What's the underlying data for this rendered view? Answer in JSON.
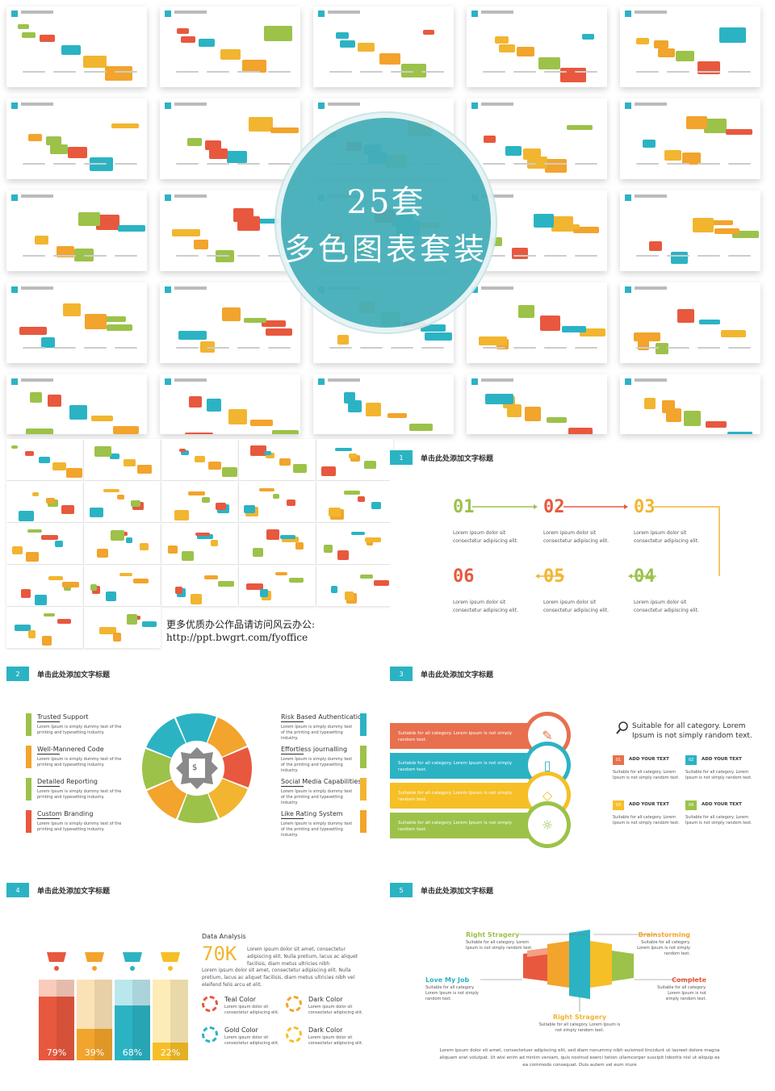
{
  "overlay": {
    "line1": "25套",
    "line2": "多色图表套装"
  },
  "collage_caption": {
    "line1": "更多优质办公作品请访问风云办公:",
    "line2": "http://ppt.bwgrt.com/fyoffice"
  },
  "slide1": {
    "num": "1",
    "title": "单击此处添加文字标题",
    "steps": [
      {
        "n": "01",
        "color": "#9cc24a",
        "text1": "Lorem ipsum dolor sit",
        "text2": "consectetur adipiscing elit."
      },
      {
        "n": "02",
        "color": "#e8583e",
        "text1": "Lorem ipsum dolor sit",
        "text2": "consectetur adipiscing elit."
      },
      {
        "n": "03",
        "color": "#f2b530",
        "text1": "Lorem ipsum dolor sit",
        "text2": "consectetur adipiscing elit."
      },
      {
        "n": "06",
        "color": "#e8583e",
        "text1": "Lorem ipsum dolor sit",
        "text2": "consectetur adipiscing elit."
      },
      {
        "n": "05",
        "color": "#f2b530",
        "text1": "Lorem ipsum dolor sit",
        "text2": "consectetur adipiscing elit."
      },
      {
        "n": "04",
        "color": "#9cc24a",
        "text1": "Lorem ipsum dolor sit",
        "text2": "consectetur adipiscing elit."
      }
    ]
  },
  "slide2": {
    "num": "2",
    "title": "单击此处添加文字标题",
    "left": [
      {
        "title": "Trusted Support",
        "color": "#9cc24a",
        "body": "Lorem Ipsum is simply dummy text of the printing and typesetting industry."
      },
      {
        "title": "Well-Mannered Code",
        "color": "#f2a42c",
        "body": "Lorem Ipsum is simply dummy text of the printing and typesetting industry."
      },
      {
        "title": "Detailed Reporting",
        "color": "#9cc24a",
        "body": "Lorem Ipsum is simply dummy text of the printing and typesetting industry."
      },
      {
        "title": "Custom Branding",
        "color": "#e8583e",
        "body": "Lorem Ipsum is simply dummy text of the printing and typesetting industry."
      }
    ],
    "right": [
      {
        "title": "Risk Based Authentication",
        "color": "#2bb3c4",
        "body": "Lorem Ipsum is simply dummy text of the printing and typesetting industry."
      },
      {
        "title": "Effortless journalling",
        "color": "#9cc24a",
        "body": "Lorem Ipsum is simply dummy text of the printing and typesetting industry."
      },
      {
        "title": "Social Media Capabilities",
        "color": "#f2b530",
        "body": "Lorem Ipsum is simply dummy text of the printing and typesetting industry."
      },
      {
        "title": "Like Rating System",
        "color": "#f2a42c",
        "body": "Lorem Ipsum is simply dummy text of the printing and typesetting industry."
      }
    ]
  },
  "slide3": {
    "num": "3",
    "title": "单击此处添加文字标题",
    "bands": [
      {
        "color": "#e8704e",
        "text": "Suitable for all category. Lorem Ipsum is not simply random text."
      },
      {
        "color": "#2bb3c4",
        "text": "Suitable for all category. Lorem Ipsum is not simply random text."
      },
      {
        "color": "#f6bf26",
        "text": "Suitable for all category. Lorem Ipsum is not simply random text."
      },
      {
        "color": "#9cc24a",
        "text": "Suitable for all category. Lorem Ipsum is not simply random text."
      }
    ],
    "headline": "Suitable for all category. Lorem Ipsum is not simply random text.",
    "items": [
      {
        "n": "01",
        "color": "#e8704e",
        "label": "ADD YOUR TEXT",
        "text": "Suitable for all category. Lorem Ipsum is not simply random text."
      },
      {
        "n": "02",
        "color": "#2bb3c4",
        "label": "ADD YOUR TEXT",
        "text": "Suitable for all category. Lorem Ipsum is not simply random text."
      },
      {
        "n": "03",
        "color": "#f6bf26",
        "label": "ADD YOUR TEXT",
        "text": "Suitable for all category. Lorem Ipsum is not simply random text."
      },
      {
        "n": "04",
        "color": "#9cc24a",
        "label": "ADD YOUR TEXT",
        "text": "Suitable for all category. Lorem Ipsum is not simply random text."
      }
    ]
  },
  "slide4": {
    "num": "4",
    "title": "单击此处添加文字标题",
    "analysis_title": "Data Analysis",
    "analysis_value": "70K",
    "analysis_text": "Lorem ipsum dolor sit amet, consectetur adipiscing elit. Nulla pretium, lacus ac aliquet facilisis, diam metus ultricies nibh",
    "analysis_text2": "Lorem ipsum dolor sit amet, consectetur adipiscing elit. Nulla pretium, lacus ac aliquet facilisis, diam metus ultricies nibh vel eleifend felis arcu et elit.",
    "bars": [
      {
        "label": "79%",
        "value": 79,
        "color": "#e8583e",
        "light": "#f4a084"
      },
      {
        "label": "39%",
        "value": 39,
        "color": "#f2a42c",
        "light": "#f8c87a"
      },
      {
        "label": "68%",
        "value": 68,
        "color": "#2bb3c4",
        "light": "#7fd3dc"
      },
      {
        "label": "22%",
        "value": 22,
        "color": "#f6bf26",
        "light": "#fbdc7c"
      }
    ],
    "legend": [
      {
        "title": "Teal Color",
        "color": "#e8583e",
        "text": "Lorem ipsum dolor sit consectetur adipiscing elit."
      },
      {
        "title": "Dark Color",
        "color": "#f2a42c",
        "text": "Lorem ipsum dolor sit consectetur adipiscing elit."
      },
      {
        "title": "Gold Color",
        "color": "#2bb3c4",
        "text": "Lorem ipsum dolor sit consectetur adipiscing elit."
      },
      {
        "title": "Dark Color",
        "color": "#f6bf26",
        "text": "Lorem ipsum dolor sit consectetur adipiscing elit."
      }
    ]
  },
  "slide5": {
    "num": "5",
    "title": "单击此处添加文字标题",
    "labels": [
      {
        "title": "Right Stragery",
        "color": "#9cc24a",
        "text": "Suitable for all category. Lorem Ipsum is not simply random text."
      },
      {
        "title": "Brainstorming",
        "color": "#f2a42c",
        "text": "Suitable for all category. Lorem Ipsum is not simply random text."
      },
      {
        "title": "Love My Job",
        "color": "#2bb3c4",
        "text": "Suitable for all category. Lorem Ipsum is not simply random text."
      },
      {
        "title": "Complete",
        "color": "#e8583e",
        "text": "Suitable for all category. Lorem Ipsum is not simply random text."
      },
      {
        "title": "Right Stragery",
        "color": "#f2b530",
        "text": "Suitable for all category. Lorem Ipsum is not simply random text."
      }
    ],
    "footer": "Lorem ipsum dolor sit amet, consectetuer adipiscing elit, sed diam nonummy nibh euismod tincidunt ut laoreet dolore magna aliquam erat volutpat. Ut wisi enim ad minim veniam, quis nostrud exerci tation ullamcorper suscipit lobortis nisl ut aliquip ex ea commodo consequat. Duis autem vel eum iriure"
  }
}
